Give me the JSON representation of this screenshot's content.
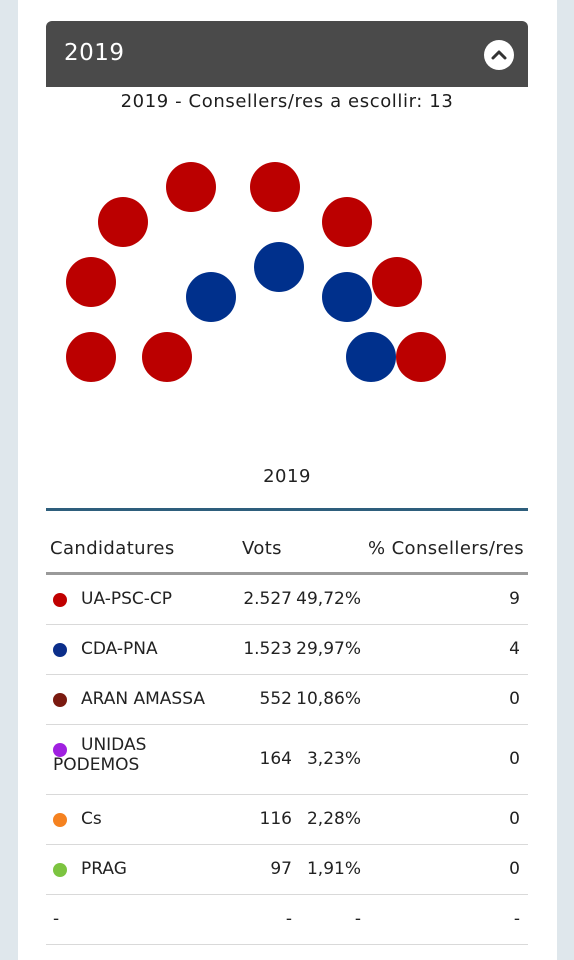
{
  "panel": {
    "title": "2019",
    "toggle_icon": "chevron-up-icon"
  },
  "subtitle": "2019 - Consellers/res a escollir: 13",
  "chart_data": {
    "type": "hemicycle",
    "title": "2019",
    "total_seats": 13,
    "series": [
      {
        "name": "UA-PSC-CP",
        "seats": 9,
        "color": "#bb0000"
      },
      {
        "name": "CDA-PNA",
        "seats": 4,
        "color": "#00308c"
      }
    ]
  },
  "table": {
    "headers": {
      "party": "Candidatures",
      "votes": "Vots",
      "pct_seats": "% Consellers/res"
    },
    "rows": [
      {
        "party": "UA-PSC-CP",
        "color": "#c00000",
        "votes": "2.527",
        "pct": "49,72%",
        "seats": "9"
      },
      {
        "party": "CDA-PNA",
        "color": "#0b2e8a",
        "votes": "1.523",
        "pct": "29,97%",
        "seats": "4"
      },
      {
        "party": "ARAN AMASSA",
        "color": "#7a1a10",
        "votes": "552",
        "pct": "10,86%",
        "seats": "0"
      },
      {
        "party": "UNIDAS PODEMOS",
        "color": "#a020e0",
        "votes": "164",
        "pct": "3,23%",
        "seats": "0"
      },
      {
        "party": "Cs",
        "color": "#f58220",
        "votes": "116",
        "pct": "2,28%",
        "seats": "0"
      },
      {
        "party": "PRAG",
        "color": "#7cc440",
        "votes": "97",
        "pct": "1,91%",
        "seats": "0"
      },
      {
        "party": "-",
        "color": "",
        "votes": "-",
        "pct": "-",
        "seats": "-"
      }
    ]
  }
}
